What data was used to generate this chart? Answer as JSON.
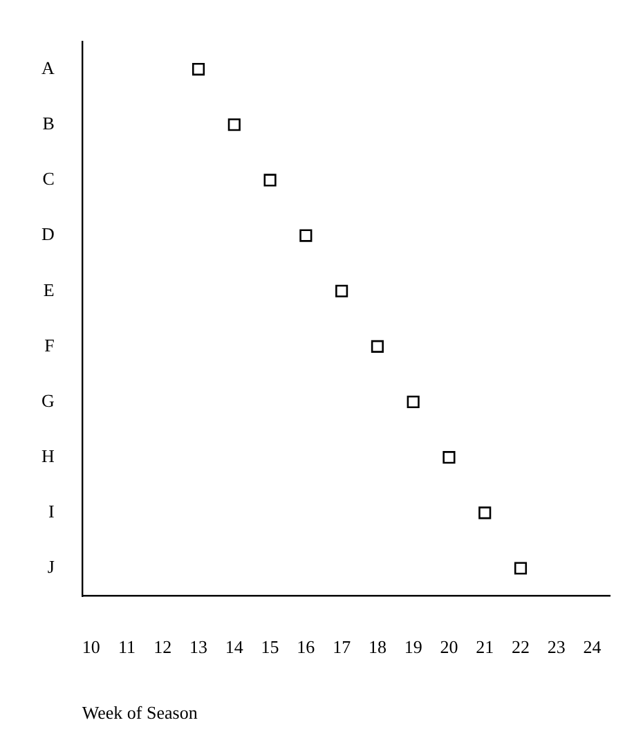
{
  "chart_data": {
    "type": "scatter",
    "orientation": "horizontal",
    "xlabel": "Week of Season",
    "categories": [
      "A",
      "B",
      "C",
      "D",
      "E",
      "F",
      "G",
      "H",
      "I",
      "J"
    ],
    "values": [
      13,
      14,
      15,
      16,
      17,
      18,
      19,
      20,
      21,
      22
    ],
    "color": "#000000",
    "marker": "square",
    "grid": false,
    "legend": false,
    "xlim": [
      9.75,
      24.5
    ],
    "xticks": [
      10,
      11,
      12,
      13,
      14,
      15,
      16,
      17,
      18,
      19,
      20,
      21,
      22,
      23,
      24
    ]
  }
}
